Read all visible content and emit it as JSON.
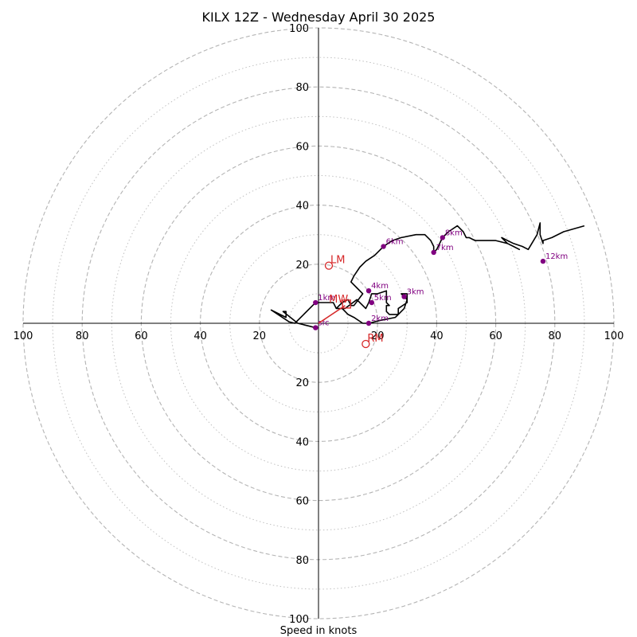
{
  "chart_data": {
    "type": "hodograph",
    "title": "KILX 12Z - Wednesday April 30 2025",
    "xlabel": "Speed in knots",
    "xlim": [
      -100,
      100
    ],
    "ylim": [
      -100,
      100
    ],
    "rings_dashed": [
      20,
      40,
      60,
      80,
      100
    ],
    "rings_dotted": [
      10,
      30,
      50,
      70,
      90
    ],
    "tick_labels": {
      "x": [
        "100",
        "80",
        "60",
        "40",
        "20",
        "20",
        "40",
        "60",
        "80",
        "100"
      ],
      "x_values": [
        -100,
        -80,
        -60,
        -40,
        -20,
        20,
        40,
        60,
        80,
        100
      ],
      "y": [
        "100",
        "80",
        "60",
        "40",
        "20",
        "20",
        "40",
        "60",
        "80",
        "100"
      ],
      "y_values": [
        100,
        80,
        60,
        40,
        20,
        -20,
        -40,
        -60,
        -80,
        -100
      ]
    },
    "trace": {
      "color": "#000000",
      "points": [
        [
          -1,
          -1.5
        ],
        [
          -3,
          -1
        ],
        [
          -7,
          0
        ],
        [
          -12,
          4
        ],
        [
          -11,
          4
        ],
        [
          -11,
          2
        ],
        [
          -16,
          4.5
        ],
        [
          -10,
          0.5
        ],
        [
          -8,
          0
        ],
        [
          -5,
          3
        ],
        [
          -1,
          7
        ],
        [
          5,
          7
        ],
        [
          6,
          5
        ],
        [
          9,
          5
        ],
        [
          13,
          8
        ],
        [
          15,
          6
        ],
        [
          16,
          5
        ],
        [
          17,
          7
        ],
        [
          18,
          10
        ],
        [
          20,
          10
        ],
        [
          23,
          11
        ],
        [
          23,
          7
        ],
        [
          24,
          6
        ],
        [
          23,
          6
        ],
        [
          23,
          4
        ],
        [
          24,
          3
        ],
        [
          27,
          3
        ],
        [
          29,
          5
        ],
        [
          30,
          8
        ],
        [
          28,
          10
        ],
        [
          29,
          10
        ],
        [
          30,
          10
        ],
        [
          30,
          7
        ],
        [
          27,
          5
        ],
        [
          27,
          3
        ],
        [
          26,
          2
        ],
        [
          21,
          1
        ],
        [
          17,
          0
        ],
        [
          15,
          0
        ],
        [
          12,
          2
        ],
        [
          10,
          3
        ],
        [
          8,
          5
        ],
        [
          6,
          5
        ],
        [
          8,
          7
        ],
        [
          10,
          8
        ],
        [
          11,
          6
        ],
        [
          12,
          6
        ],
        [
          15,
          10
        ],
        [
          13,
          12
        ],
        [
          11,
          14
        ],
        [
          12,
          16
        ],
        [
          14,
          19
        ],
        [
          16,
          21
        ],
        [
          19,
          23
        ],
        [
          21,
          25
        ],
        [
          22,
          26
        ],
        [
          25,
          28
        ],
        [
          28,
          29
        ],
        [
          33,
          30
        ],
        [
          36,
          30
        ],
        [
          38,
          28
        ],
        [
          39,
          26
        ],
        [
          39,
          24
        ],
        [
          40,
          25
        ],
        [
          42,
          29
        ],
        [
          44,
          31
        ],
        [
          47,
          33
        ],
        [
          49,
          31
        ],
        [
          50,
          29
        ],
        [
          51,
          29
        ],
        [
          53,
          28
        ],
        [
          56,
          28
        ],
        [
          60,
          28
        ],
        [
          64,
          27
        ],
        [
          66,
          26
        ],
        [
          68,
          25
        ],
        [
          64,
          27
        ],
        [
          62,
          29
        ],
        [
          64,
          28
        ],
        [
          66,
          27
        ],
        [
          69,
          26
        ],
        [
          71,
          25
        ],
        [
          74,
          30
        ],
        [
          75,
          34
        ],
        [
          75,
          30
        ],
        [
          76,
          27
        ],
        [
          76,
          28
        ],
        [
          79,
          29
        ],
        [
          83,
          31
        ],
        [
          90,
          33
        ]
      ]
    },
    "height_markers": [
      {
        "label": "sfc",
        "u": -1,
        "v": -1.5
      },
      {
        "label": "1km",
        "u": -1,
        "v": 7
      },
      {
        "label": "2km",
        "u": 17,
        "v": 0
      },
      {
        "label": "3km",
        "u": 29,
        "v": 9
      },
      {
        "label": "4km",
        "u": 17,
        "v": 11
      },
      {
        "label": "5km",
        "u": 18,
        "v": 7
      },
      {
        "label": "6km",
        "u": 22,
        "v": 26
      },
      {
        "label": "7km",
        "u": 39,
        "v": 24
      },
      {
        "label": "8km",
        "u": 42,
        "v": 29
      },
      {
        "label": "12km",
        "u": 76,
        "v": 21
      }
    ],
    "storm_motion": {
      "color": "#d62728",
      "vector": {
        "from": [
          0,
          0
        ],
        "to": [
          9,
          6
        ]
      },
      "mean_wind": {
        "label": "MW",
        "u": 9.5,
        "v": 6.5
      },
      "left_mover": {
        "label": "LM",
        "u": 3.5,
        "v": 19.5
      },
      "right_mover": {
        "label": "RM",
        "u": 16,
        "v": -7
      }
    }
  }
}
